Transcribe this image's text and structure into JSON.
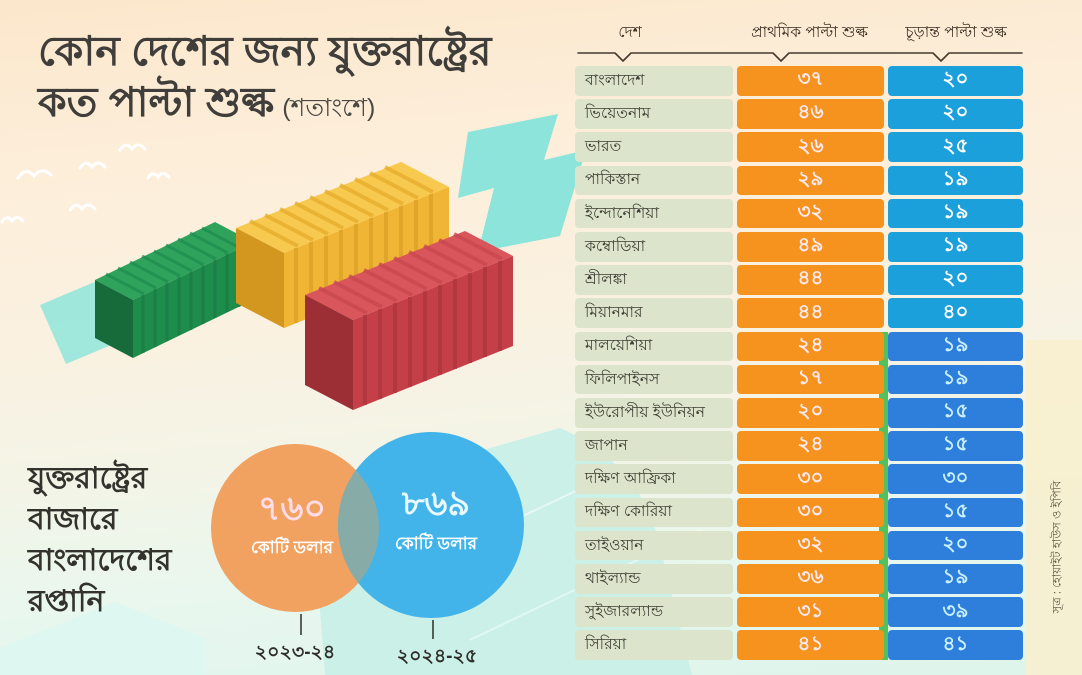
{
  "title": {
    "line1": "কোন দেশের জন্য যুক্তরাষ্ট্রের",
    "line2": "কত পাল্টা শুল্ক",
    "subtitle": "(শতাংশে)"
  },
  "table": {
    "headers": {
      "country": "দেশ",
      "initial": "প্রাথমিক পাল্টা শুল্ক",
      "final": "চূড়ান্ত পাল্টা শুল্ক"
    },
    "rows": [
      {
        "country": "বাংলাদেশ",
        "initial": "৩৭",
        "final": "২০"
      },
      {
        "country": "ভিয়েতনাম",
        "initial": "৪৬",
        "final": "২০"
      },
      {
        "country": "ভারত",
        "initial": "২৬",
        "final": "২৫"
      },
      {
        "country": "পাকিস্তান",
        "initial": "২৯",
        "final": "১৯"
      },
      {
        "country": "ইন্দোনেশিয়া",
        "initial": "৩২",
        "final": "১৯"
      },
      {
        "country": "কম্বোডিয়া",
        "initial": "৪৯",
        "final": "১৯"
      },
      {
        "country": "শ্রীলঙ্কা",
        "initial": "৪৪",
        "final": "২০"
      },
      {
        "country": "মিয়ানমার",
        "initial": "৪৪",
        "final": "৪০"
      },
      {
        "country": "মালয়েশিয়া",
        "initial": "২৪",
        "final": "১৯"
      },
      {
        "country": "ফিলিপাইনস",
        "initial": "১৭",
        "final": "১৯"
      },
      {
        "country": "ইউরোপীয় ইউনিয়ন",
        "initial": "২০",
        "final": "১৫"
      },
      {
        "country": "জাপান",
        "initial": "২৪",
        "final": "১৫"
      },
      {
        "country": "দক্ষিণ আফ্রিকা",
        "initial": "৩০",
        "final": "৩০"
      },
      {
        "country": "দক্ষিণ কোরিয়া",
        "initial": "৩০",
        "final": "১৫"
      },
      {
        "country": "তাইওয়ান",
        "initial": "৩২",
        "final": "২০"
      },
      {
        "country": "থাইল্যান্ড",
        "initial": "৩৬",
        "final": "১৯"
      },
      {
        "country": "সুইজারল্যান্ড",
        "initial": "৩১",
        "final": "৩৯"
      },
      {
        "country": "সিরিয়া",
        "initial": "৪১",
        "final": "৪১"
      }
    ]
  },
  "export_section": {
    "label_lines": [
      "যুক্তরাষ্ট্রের",
      "বাজারে",
      "বাংলাদেশের",
      "রপ্তানি"
    ],
    "circles": [
      {
        "value": "৭৬০",
        "unit": "কোটি ডলার",
        "year": "২০২৩-২৪",
        "color": "#F1A160"
      },
      {
        "value": "৮৬৯",
        "unit": "কোটি ডলার",
        "year": "২০২৪-২৫",
        "color": "#42B4E9"
      }
    ]
  },
  "source": "সূত্র : হোয়াইট হাউস ও ইপিবি",
  "colors": {
    "initial_cell": "#F6921E",
    "initial_text": "#FFE9F0",
    "final_cell": "#1CA0DB",
    "final_text": "#FFFFFF",
    "final_cell_deep": "#2E7FDC",
    "final_text_deep": "#C9F0FE",
    "final_deep_from_row": 8,
    "country_cell": "#DCE4CC",
    "country_text": "#3E3D33",
    "overlap": "#87ACA8",
    "container_green": "#1E8C4A",
    "container_yellow": "#F0B534",
    "container_red": "#C43F48"
  },
  "chart_data": [
    {
      "type": "table",
      "title": "কোন দেশের জন্য যুক্তরাষ্ট্রের কত পাল্টা শুল্ক (শতাংশে)",
      "columns": [
        "দেশ",
        "প্রাথমিক পাল্টা শুল্ক",
        "চূড়ান্ত পাল্টা শুল্ক"
      ],
      "categories": [
        "Bangladesh",
        "Vietnam",
        "India",
        "Pakistan",
        "Indonesia",
        "Cambodia",
        "Sri Lanka",
        "Myanmar",
        "Malaysia",
        "Philippines",
        "European Union",
        "Japan",
        "South Africa",
        "South Korea",
        "Taiwan",
        "Thailand",
        "Switzerland",
        "Syria"
      ],
      "series": [
        {
          "name": "initial_reciprocal_tariff_pct",
          "values": [
            37,
            46,
            26,
            29,
            32,
            49,
            44,
            44,
            24,
            17,
            20,
            24,
            30,
            30,
            32,
            36,
            31,
            41
          ]
        },
        {
          "name": "final_reciprocal_tariff_pct",
          "values": [
            20,
            20,
            25,
            19,
            19,
            19,
            20,
            40,
            19,
            19,
            15,
            15,
            30,
            15,
            20,
            19,
            39,
            41
          ]
        }
      ]
    },
    {
      "type": "bar",
      "title": "যুক্তরাষ্ট্রের বাজারে বাংলাদেশের রপ্তানি",
      "categories": [
        "২০২৩-২৪",
        "২০২৪-২৫"
      ],
      "values": [
        760,
        869
      ],
      "ylabel": "কোটি ডলার"
    }
  ]
}
